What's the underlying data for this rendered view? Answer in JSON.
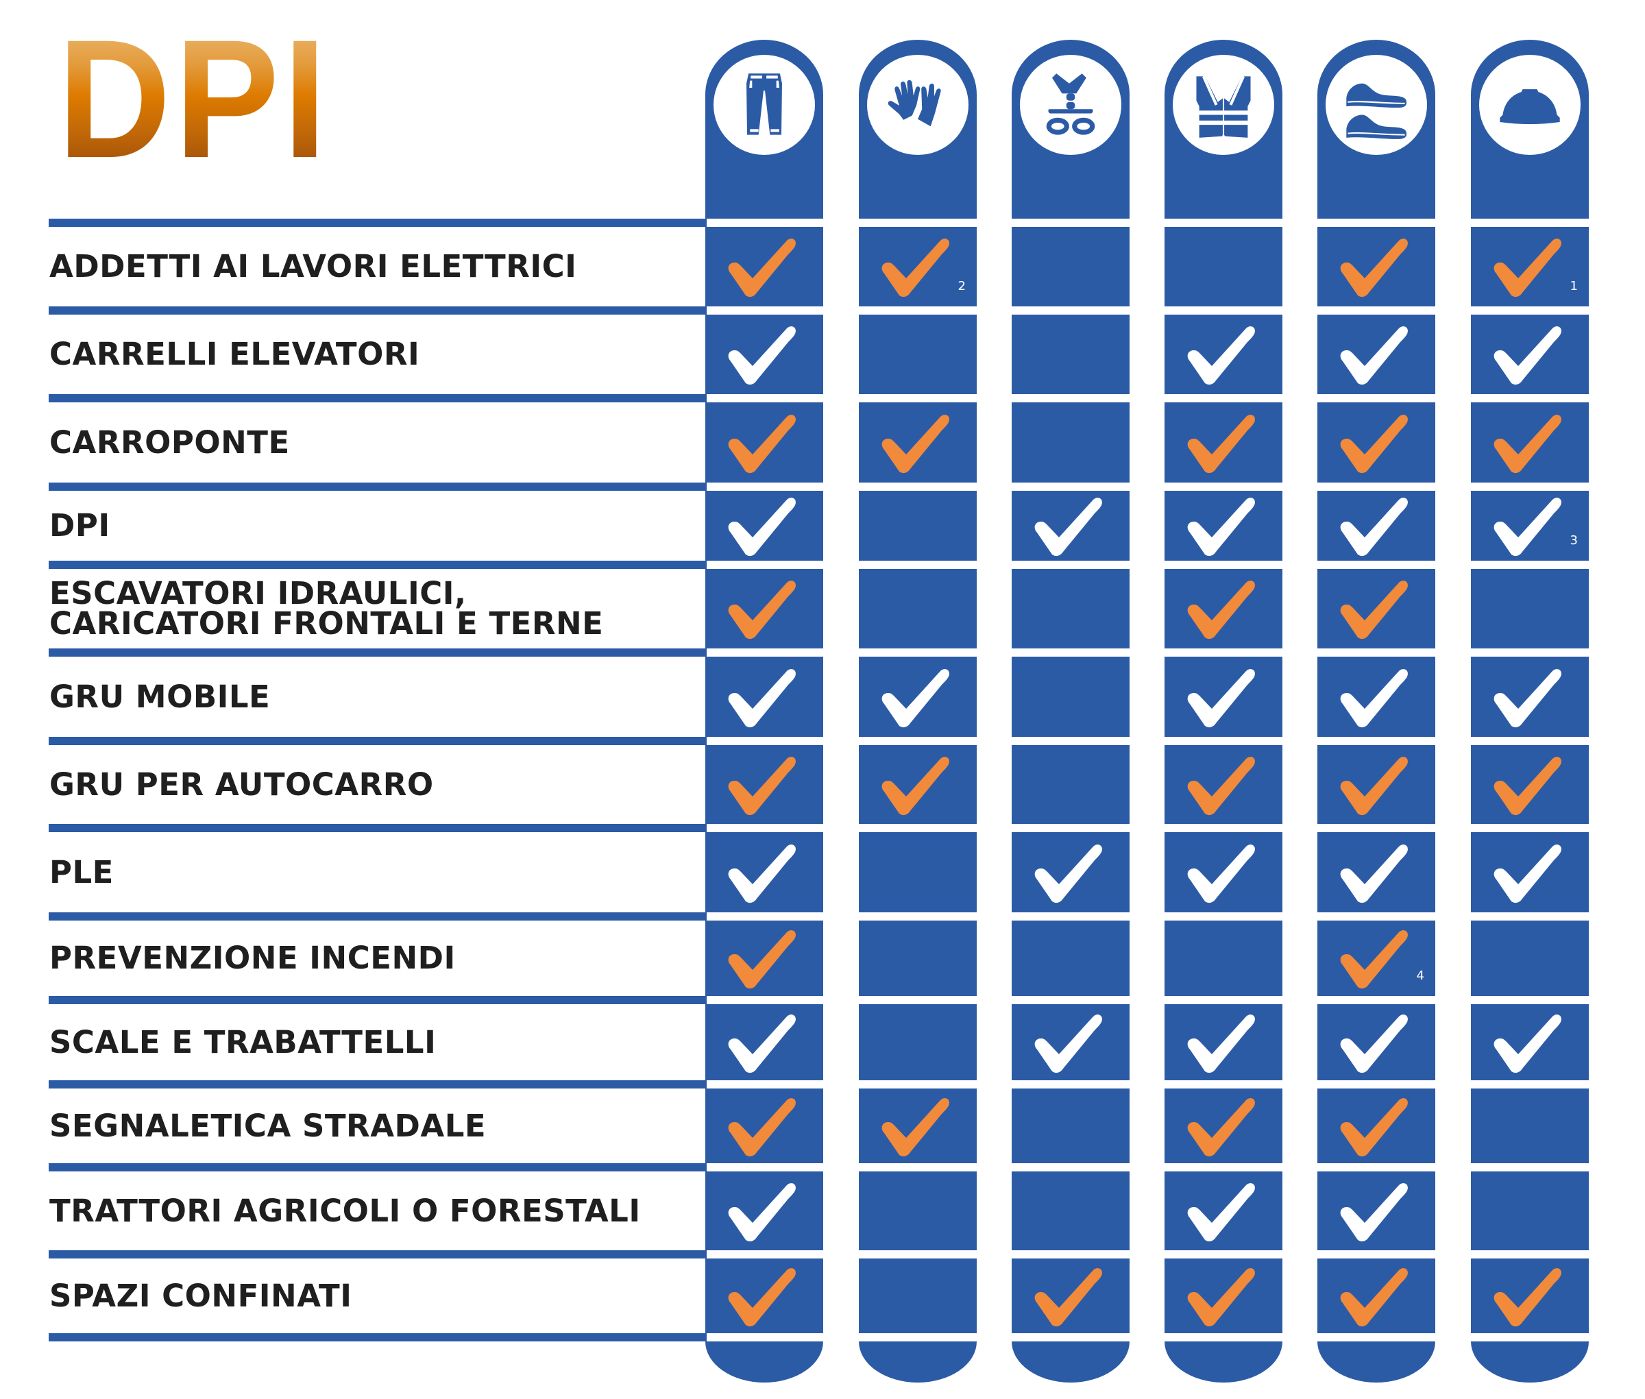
{
  "title": "DPI",
  "colors": {
    "blue": "#2C5BA6",
    "orange_check": "#F28A3B",
    "white_check": "#FFFFFF",
    "title_gradient": [
      "#EDBE7C",
      "#DD7B00",
      "#93470B"
    ]
  },
  "columns": [
    {
      "key": "trousers",
      "icon": "trousers-icon",
      "label": "Indumenti da lavoro"
    },
    {
      "key": "gloves",
      "icon": "gloves-icon",
      "label": "Guanti"
    },
    {
      "key": "harness",
      "icon": "harness-icon",
      "label": "Imbracatura"
    },
    {
      "key": "vest",
      "icon": "high-visibility-vest-icon",
      "label": "Gilet alta visibilità"
    },
    {
      "key": "shoes",
      "icon": "safety-shoes-icon",
      "label": "Calzature di sicurezza"
    },
    {
      "key": "helmet",
      "icon": "hard-hat-icon",
      "label": "Elmetto"
    }
  ],
  "rows": [
    {
      "label": "ADDETTI AI LAVORI ELETTRICI",
      "color": "orange",
      "checks": [
        true,
        true,
        false,
        false,
        true,
        true
      ],
      "notes": [
        "",
        "2",
        "",
        "",
        "",
        "1"
      ]
    },
    {
      "label": "CARRELLI ELEVATORI",
      "color": "white",
      "checks": [
        true,
        false,
        false,
        true,
        true,
        true
      ],
      "notes": [
        "",
        "",
        "",
        "",
        "",
        ""
      ]
    },
    {
      "label": "CARROPONTE",
      "color": "orange",
      "checks": [
        true,
        true,
        false,
        true,
        true,
        true
      ],
      "notes": [
        "",
        "",
        "",
        "",
        "",
        ""
      ]
    },
    {
      "label": "DPI",
      "color": "white",
      "checks": [
        true,
        false,
        true,
        true,
        true,
        true
      ],
      "notes": [
        "",
        "",
        "",
        "",
        "",
        "3"
      ]
    },
    {
      "label": "ESCAVATORI IDRAULICI,\nCARICATORI FRONTALI E TERNE",
      "color": "orange",
      "checks": [
        true,
        false,
        false,
        true,
        true,
        false
      ],
      "notes": [
        "",
        "",
        "",
        "",
        "",
        ""
      ]
    },
    {
      "label": "GRU MOBILE",
      "color": "white",
      "checks": [
        true,
        true,
        false,
        true,
        true,
        true
      ],
      "notes": [
        "",
        "",
        "",
        "",
        "",
        ""
      ]
    },
    {
      "label": "GRU PER AUTOCARRO",
      "color": "orange",
      "checks": [
        true,
        true,
        false,
        true,
        true,
        true
      ],
      "notes": [
        "",
        "",
        "",
        "",
        "",
        ""
      ]
    },
    {
      "label": "PLE",
      "color": "white",
      "checks": [
        true,
        false,
        true,
        true,
        true,
        true
      ],
      "notes": [
        "",
        "",
        "",
        "",
        "",
        ""
      ]
    },
    {
      "label": "PREVENZIONE INCENDI",
      "color": "orange",
      "checks": [
        true,
        false,
        false,
        false,
        true,
        false
      ],
      "notes": [
        "",
        "",
        "",
        "",
        "4",
        ""
      ]
    },
    {
      "label": "SCALE E TRABATTELLI",
      "color": "white",
      "checks": [
        true,
        false,
        true,
        true,
        true,
        true
      ],
      "notes": [
        "",
        "",
        "",
        "",
        "",
        ""
      ]
    },
    {
      "label": "SEGNALETICA STRADALE",
      "color": "orange",
      "checks": [
        true,
        true,
        false,
        true,
        true,
        false
      ],
      "notes": [
        "",
        "",
        "",
        "",
        "",
        ""
      ]
    },
    {
      "label": "TRATTORI AGRICOLI O FORESTALI",
      "color": "white",
      "checks": [
        true,
        false,
        false,
        true,
        true,
        false
      ],
      "notes": [
        "",
        "",
        "",
        "",
        "",
        ""
      ]
    },
    {
      "label": "SPAZI CONFINATI",
      "color": "orange",
      "checks": [
        true,
        false,
        true,
        true,
        true,
        true
      ],
      "notes": [
        "",
        "",
        "",
        "",
        "",
        ""
      ]
    }
  ]
}
